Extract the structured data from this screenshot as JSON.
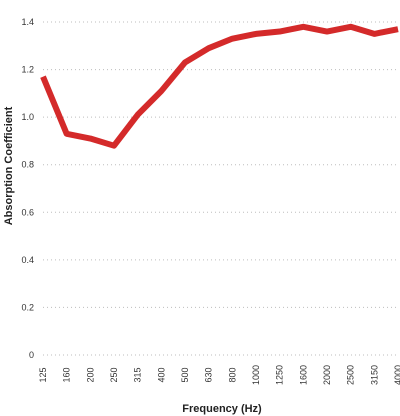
{
  "chart_data": {
    "type": "line",
    "title": "",
    "xlabel": "Frequency (Hz)",
    "ylabel": "Absorption Coefficient",
    "categories": [
      "125",
      "160",
      "200",
      "250",
      "315",
      "400",
      "500",
      "630",
      "800",
      "1000",
      "1250",
      "1600",
      "2000",
      "2500",
      "3150",
      "4000"
    ],
    "series": [
      {
        "values": [
          1.17,
          0.93,
          0.91,
          0.88,
          1.01,
          1.11,
          1.23,
          1.29,
          1.33,
          1.35,
          1.36,
          1.38,
          1.36,
          1.38,
          1.35,
          1.37
        ],
        "color": "#d42a2a"
      }
    ],
    "ylim": [
      0,
      1.4
    ],
    "yticks": [
      "0",
      "0.2",
      "0.4",
      "0.6",
      "0.8",
      "1.0",
      "1.2",
      "1.4"
    ],
    "xtick_rotation": "vertical",
    "grid": "horizontal-dotted",
    "legend": "none"
  }
}
